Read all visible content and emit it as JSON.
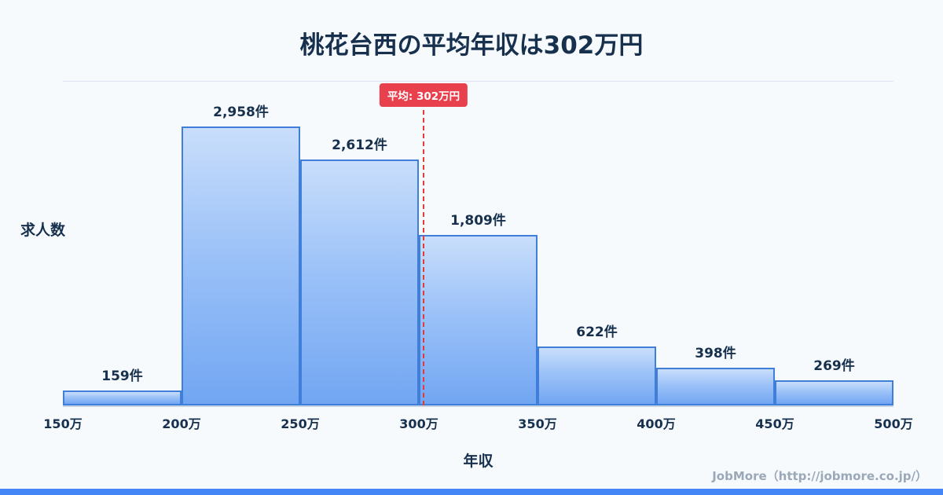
{
  "title": "桃花台西の平均年収は302万円",
  "ylabel": "求人数",
  "xlabel": "年収",
  "footer": "JobMore（http://jobmore.co.jp/）",
  "colors": {
    "background": "#f7fafd",
    "bar_border": "#3f7fd9",
    "bar_fill_top": "#c9defb",
    "bar_fill_bottom": "#72a6f2",
    "average_line": "#e03c3c",
    "badge_background": "#e8414d",
    "text_navy": "#16304d",
    "footer_gray": "#9aa8b8",
    "bottom_strip": "#4486f6"
  },
  "chart_data": {
    "type": "bar",
    "subtype": "histogram",
    "title": "桃花台西の平均年収は302万円",
    "xlabel": "年収",
    "ylabel": "求人数",
    "bin_edges": [
      150,
      200,
      250,
      300,
      350,
      400,
      450,
      500
    ],
    "bin_edge_labels": [
      "150万",
      "200万",
      "250万",
      "300万",
      "350万",
      "400万",
      "450万",
      "500万"
    ],
    "values": [
      159,
      2958,
      2612,
      1809,
      622,
      398,
      269
    ],
    "value_labels": [
      "159件",
      "2,958件",
      "2,612件",
      "1,809件",
      "622件",
      "398件",
      "269件"
    ],
    "ylim": [
      0,
      2958
    ],
    "grid": false,
    "legend": false,
    "average_line": {
      "x": 302,
      "label": "平均: 302万円",
      "color": "#e03c3c"
    }
  }
}
